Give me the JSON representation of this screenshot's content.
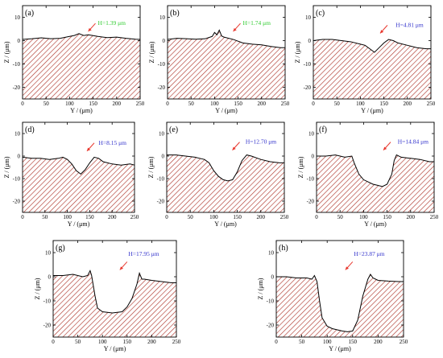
{
  "chart_data": [
    {
      "type": "area",
      "panel_label": "(a)",
      "annotation": "H=1.39 μm",
      "annotation_color": "#33cc33",
      "xlabel": "Y / (μm)",
      "ylabel": "Z / (μm)",
      "xlim": [
        0,
        250
      ],
      "ylim": [
        -25,
        15
      ],
      "xticks": [
        0,
        50,
        100,
        150,
        200,
        250
      ],
      "yticks": [
        10,
        0,
        -10,
        -20
      ],
      "x": [
        0,
        20,
        40,
        60,
        80,
        100,
        110,
        120,
        130,
        140,
        160,
        180,
        200,
        220,
        240,
        250
      ],
      "values": [
        0.5,
        0.8,
        1.2,
        0.8,
        1.0,
        1.8,
        2.2,
        3.0,
        2.2,
        2.5,
        1.8,
        1.3,
        1.5,
        1.0,
        0.6,
        0.5
      ]
    },
    {
      "type": "area",
      "panel_label": "(b)",
      "annotation": "H=1.74 μm",
      "annotation_color": "#33cc33",
      "xlabel": "Y / (μm)",
      "ylabel": "Z / (μm)",
      "xlim": [
        0,
        250
      ],
      "ylim": [
        -25,
        15
      ],
      "xticks": [
        0,
        50,
        100,
        150,
        200,
        250
      ],
      "yticks": [
        10,
        0,
        -10,
        -20
      ],
      "x": [
        0,
        20,
        40,
        60,
        80,
        95,
        100,
        105,
        110,
        115,
        120,
        140,
        160,
        180,
        200,
        220,
        240,
        250
      ],
      "values": [
        0.5,
        1.0,
        0.8,
        0.6,
        0.8,
        1.8,
        3.5,
        2.5,
        4.5,
        2.0,
        1.5,
        0.5,
        -1.0,
        -1.5,
        -1.8,
        -2.5,
        -3.0,
        -3.0
      ]
    },
    {
      "type": "area",
      "panel_label": "(c)",
      "annotation": "H=4.81 μm",
      "annotation_color": "#3333cc",
      "xlabel": "Y / (μm)",
      "ylabel": "Z / (μm)",
      "xlim": [
        0,
        250
      ],
      "ylim": [
        -25,
        15
      ],
      "xticks": [
        0,
        50,
        100,
        150,
        200,
        250
      ],
      "yticks": [
        10,
        0,
        -10,
        -20
      ],
      "x": [
        0,
        20,
        40,
        60,
        80,
        100,
        110,
        120,
        130,
        140,
        150,
        160,
        170,
        180,
        200,
        220,
        240,
        250
      ],
      "values": [
        0,
        0.5,
        0.5,
        0,
        -0.5,
        -1.5,
        -2.0,
        -3.5,
        -5.0,
        -3.0,
        -1.0,
        0.5,
        0,
        -1.0,
        -2.0,
        -3.0,
        -3.5,
        -3.5
      ]
    },
    {
      "type": "area",
      "panel_label": "(d)",
      "annotation": "H=8.15 μm",
      "annotation_color": "#3333cc",
      "xlabel": "Y / (μm)",
      "ylabel": "Z / (μm)",
      "xlim": [
        0,
        250
      ],
      "ylim": [
        -25,
        15
      ],
      "xticks": [
        0,
        50,
        100,
        150,
        200,
        250
      ],
      "yticks": [
        10,
        0,
        -10,
        -20
      ],
      "x": [
        0,
        20,
        40,
        60,
        80,
        90,
        100,
        110,
        120,
        130,
        140,
        150,
        160,
        170,
        180,
        200,
        220,
        240,
        250
      ],
      "values": [
        -0.5,
        -1.0,
        -1.0,
        -1.5,
        -1.0,
        -0.5,
        -1.5,
        -3.5,
        -6.5,
        -8.0,
        -6.0,
        -3.0,
        -0.5,
        -1.0,
        -2.5,
        -3.5,
        -4.0,
        -3.5,
        -4.0
      ]
    },
    {
      "type": "area",
      "panel_label": "(e)",
      "annotation": "H=12.70 μm",
      "annotation_color": "#3333cc",
      "xlabel": "Y / (μm)",
      "ylabel": "Z / (μm)",
      "xlim": [
        0,
        250
      ],
      "ylim": [
        -25,
        15
      ],
      "xticks": [
        0,
        50,
        100,
        150,
        200,
        250
      ],
      "yticks": [
        10,
        0,
        -10,
        -20
      ],
      "x": [
        0,
        20,
        40,
        60,
        70,
        80,
        90,
        100,
        110,
        120,
        130,
        140,
        150,
        160,
        170,
        180,
        200,
        220,
        240,
        250
      ],
      "values": [
        0.5,
        0.5,
        0,
        -0.5,
        -1.0,
        -1.5,
        -3.0,
        -6.5,
        -9.0,
        -10.5,
        -11.0,
        -10.5,
        -7.0,
        -2.0,
        0.5,
        0,
        -1.5,
        -2.5,
        -3.0,
        -3.0
      ]
    },
    {
      "type": "area",
      "panel_label": "(f)",
      "annotation": "H=14.84 μm",
      "annotation_color": "#3333cc",
      "xlabel": "Y / (μm)",
      "ylabel": "Z / (μm)",
      "xlim": [
        0,
        250
      ],
      "ylim": [
        -25,
        15
      ],
      "xticks": [
        0,
        50,
        100,
        150,
        200,
        250
      ],
      "yticks": [
        10,
        0,
        -10,
        -20
      ],
      "x": [
        0,
        20,
        40,
        60,
        75,
        80,
        90,
        100,
        110,
        120,
        130,
        140,
        150,
        160,
        165,
        170,
        180,
        200,
        220,
        240,
        250
      ],
      "values": [
        0,
        0,
        0.5,
        -0.5,
        0,
        -3.0,
        -8.0,
        -10.5,
        -11.5,
        -12.5,
        -13.0,
        -13.5,
        -12.5,
        -8.0,
        -2.0,
        0.5,
        -0.5,
        -1.0,
        -1.5,
        -2.5,
        -2.5
      ]
    },
    {
      "type": "area",
      "panel_label": "(g)",
      "annotation": "H=17.95 μm",
      "annotation_color": "#3333cc",
      "xlabel": "Y / (μm)",
      "ylabel": "Z / (μm)",
      "xlim": [
        0,
        250
      ],
      "ylim": [
        -25,
        15
      ],
      "xticks": [
        0,
        50,
        100,
        150,
        200,
        250
      ],
      "yticks": [
        10,
        0,
        -10,
        -20
      ],
      "x": [
        0,
        20,
        40,
        60,
        70,
        75,
        78,
        85,
        90,
        100,
        120,
        140,
        150,
        160,
        170,
        175,
        180,
        185,
        200,
        220,
        240,
        250
      ],
      "values": [
        0.5,
        0.5,
        1.0,
        0,
        0.5,
        2.5,
        0.5,
        -8.0,
        -13.0,
        -14.5,
        -15.0,
        -14.5,
        -12.5,
        -9.0,
        -3.0,
        1.5,
        -1.0,
        -1.0,
        -1.5,
        -2.0,
        -2.5,
        -2.5
      ]
    },
    {
      "type": "area",
      "panel_label": "(h)",
      "annotation": "H=23.87 μm",
      "annotation_color": "#3333cc",
      "xlabel": "Y / (μm)",
      "ylabel": "Z / (μm)",
      "xlim": [
        0,
        250
      ],
      "ylim": [
        -25,
        15
      ],
      "xticks": [
        0,
        50,
        100,
        150,
        200,
        250
      ],
      "yticks": [
        10,
        0,
        -10,
        -20
      ],
      "x": [
        0,
        20,
        40,
        60,
        70,
        75,
        80,
        85,
        90,
        100,
        110,
        120,
        130,
        140,
        150,
        160,
        170,
        180,
        185,
        190,
        200,
        220,
        240,
        250
      ],
      "values": [
        0,
        0,
        -0.5,
        -0.5,
        -1.0,
        0.5,
        -2.0,
        -10.0,
        -17.0,
        -20.5,
        -21.5,
        -22.0,
        -22.5,
        -22.8,
        -22.5,
        -18.0,
        -8.0,
        -1.0,
        1.0,
        -0.5,
        -1.5,
        -1.8,
        -2.0,
        -2.0
      ]
    }
  ]
}
